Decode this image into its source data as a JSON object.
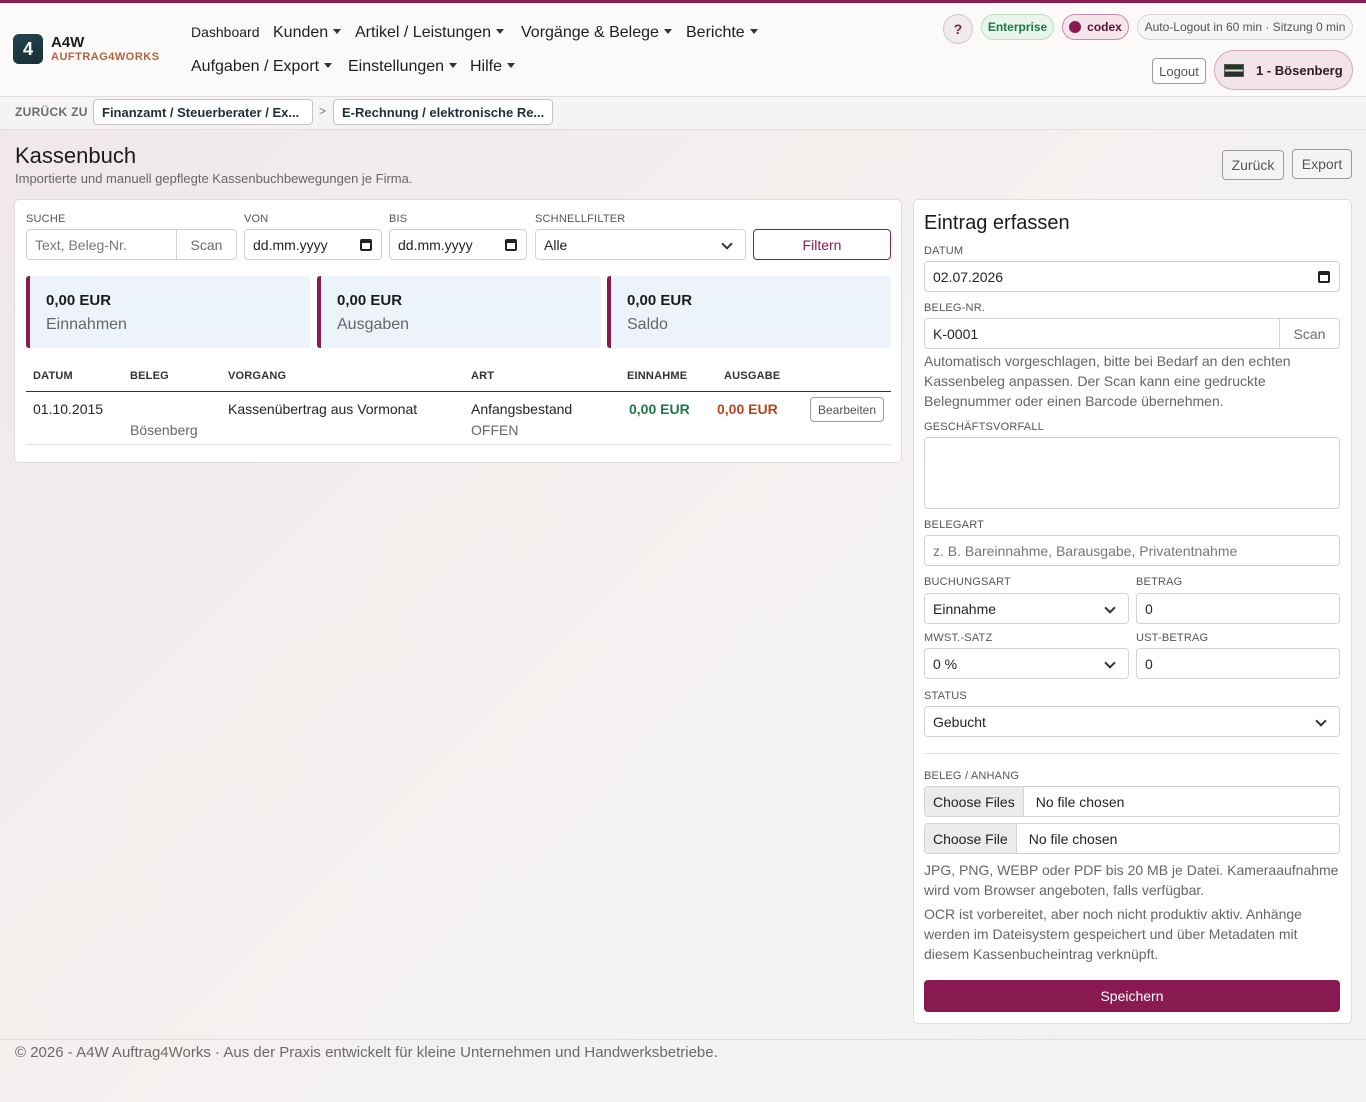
{
  "brand": {
    "mark": "4",
    "title": "A4W",
    "subtitle": "AUFTRAG4WORKS"
  },
  "nav": {
    "dashboard": "Dashboard",
    "kunden": "Kunden",
    "artikel": "Artikel / Leistungen",
    "vorgaenge": "Vorgänge & Belege",
    "berichte": "Berichte",
    "aufgaben": "Aufgaben / Export",
    "einstellungen": "Einstellungen",
    "hilfe": "Hilfe"
  },
  "topright": {
    "help": "?",
    "plan": "Enterprise",
    "user": "codex",
    "session": "Auto-Logout in 60 min · Sitzung 0 min",
    "logout": "Logout",
    "company": "1 - Bösenberg"
  },
  "breadcrumb": {
    "label": "ZURÜCK ZU",
    "items": [
      "Finanzamt / Steuerberater / Ex...",
      "E-Rechnung / elektronische Re..."
    ],
    "separator": ">"
  },
  "page": {
    "title": "Kassenbuch",
    "subtitle": "Importierte und manuell gepflegte Kassenbuchbewegungen je Firma.",
    "back": "Zurück",
    "export": "Export"
  },
  "filters": {
    "search_label": "SUCHE",
    "search_placeholder": "Text, Beleg-Nr.",
    "scan": "Scan",
    "from_label": "VON",
    "from_value": "dd.mm.yyyy",
    "to_label": "BIS",
    "to_value": "dd.mm.yyyy",
    "quick_label": "SCHNELLFILTER",
    "quick_value": "Alle",
    "apply": "Filtern"
  },
  "stats": [
    {
      "value": "0,00 EUR",
      "label": "Einnahmen"
    },
    {
      "value": "0,00 EUR",
      "label": "Ausgaben"
    },
    {
      "value": "0,00 EUR",
      "label": "Saldo"
    }
  ],
  "table": {
    "headers": [
      "DATUM",
      "BELEG",
      "VORGANG",
      "ART",
      "EINNAHME",
      "AUSGABE"
    ],
    "rows": [
      {
        "datum": "01.10.2015",
        "beleg": "Bösenberg",
        "vorgang": "Kassenübertrag aus Vormonat",
        "art": "Anfangsbestand",
        "status": "OFFEN",
        "einnahme": "0,00 EUR",
        "ausgabe": "0,00 EUR",
        "action": "Bearbeiten"
      }
    ]
  },
  "form": {
    "title": "Eintrag erfassen",
    "datum_label": "DATUM",
    "datum_value": "02.07.2026",
    "beleg_label": "BELEG-NR.",
    "beleg_value": "K-0001",
    "scan": "Scan",
    "beleg_help": "Automatisch vorgeschlagen, bitte bei Bedarf an den echten Kassenbeleg anpassen. Der Scan kann eine gedruckte Belegnummer oder einen Barcode übernehmen.",
    "vorfall_label": "GESCHÄFTSVORFALL",
    "vorfall_value": "",
    "belegart_label": "BELEGART",
    "belegart_placeholder": "z. B. Bareinnahme, Barausgabe, Privatentnahme",
    "buchungsart_label": "BUCHUNGSART",
    "buchungsart_value": "Einnahme",
    "betrag_label": "BETRAG",
    "betrag_value": "0",
    "mwst_label": "MWST.-SATZ",
    "mwst_value": "0 %",
    "ust_label": "UST-BETRAG",
    "ust_value": "0",
    "status_label": "STATUS",
    "status_value": "Gebucht",
    "anhang_label": "BELEG / ANHANG",
    "file1_button": "Choose Files",
    "file1_text": "No file chosen",
    "file2_button": "Choose File",
    "file2_text": "No file chosen",
    "file_help": "JPG, PNG, WEBP oder PDF bis 20 MB je Datei. Kameraaufnahme wird vom Browser angeboten, falls verfügbar.",
    "ocr_help": "OCR ist vorbereitet, aber noch nicht produktiv aktiv. Anhänge werden im Dateisystem gespeichert und über Metadaten mit diesem Kassenbucheintrag verknüpft.",
    "save": "Speichern"
  },
  "footer": "© 2026 - A4W Auftrag4Works · Aus der Praxis entwickelt für kleine Unternehmen und Handwerksbetriebe.",
  "colors": {
    "accent": "#8a1a52",
    "income": "#1a7a45",
    "expense": "#b8461e"
  }
}
